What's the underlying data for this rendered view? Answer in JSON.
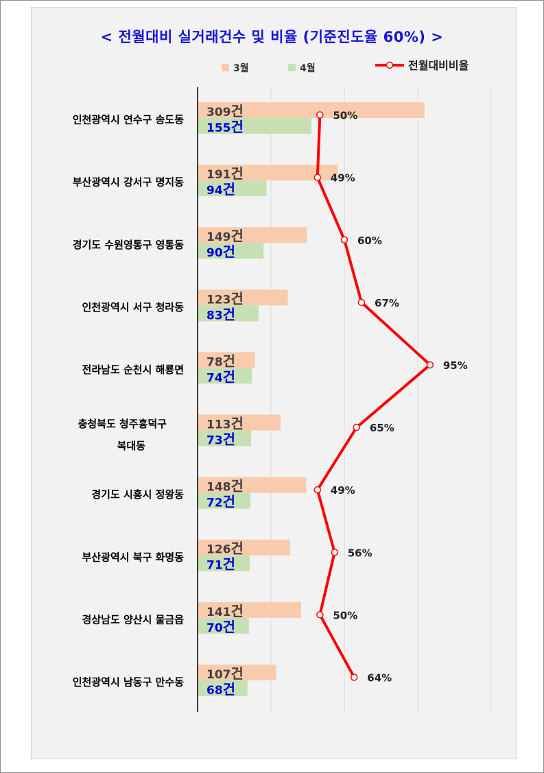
{
  "chart_data": {
    "type": "bar",
    "title": "< 전월대비 실거래건수 및 비율 (기준진도율 60%) >",
    "categories": [
      "인천광역시 연수구 송도동",
      "부산광역시 강서구 명지동",
      "경기도 수원영통구 영통동",
      "인천광역시 서구 청라동",
      "전라남도 순천시 해룡면",
      "충청북도 청주흥덕구 복대동",
      "경기도 시흥시 정왕동",
      "부산광역시 북구 화명동",
      "경상남도 양산시 물금읍",
      "인천광역시 남동구 만수동"
    ],
    "category_lines": [
      [
        "인천광역시 연수구 송도동"
      ],
      [
        "부산광역시 강서구 명지동"
      ],
      [
        "경기도 수원영통구 영통동"
      ],
      [
        "인천광역시 서구 청라동"
      ],
      [
        "전라남도 순천시 해룡면"
      ],
      [
        "충청북도 청주흥덕구",
        "복대동"
      ],
      [
        "경기도 시흥시 정왕동"
      ],
      [
        "부산광역시 북구 화명동"
      ],
      [
        "경상남도 양산시 물금읍"
      ],
      [
        "인천광역시 남동구 만수동"
      ]
    ],
    "series": [
      {
        "name": "3월",
        "values": [
          309,
          191,
          149,
          123,
          78,
          113,
          148,
          126,
          141,
          107
        ],
        "color": "#f8cbad",
        "label_color": "#404040"
      },
      {
        "name": "4월",
        "values": [
          155,
          94,
          90,
          83,
          74,
          73,
          72,
          71,
          70,
          68
        ],
        "color": "#c6e0b4",
        "label_color": "#0000dd"
      }
    ],
    "value_suffix": "건",
    "xlim": [
      0,
      400
    ],
    "line_series": {
      "name": "전월대비비율",
      "values": [
        50,
        49,
        60,
        67,
        95,
        65,
        49,
        56,
        50,
        64
      ],
      "suffix": "%",
      "color": "#ff0000",
      "xlim": [
        0,
        120
      ]
    },
    "legend_position": "top",
    "grid": true
  }
}
